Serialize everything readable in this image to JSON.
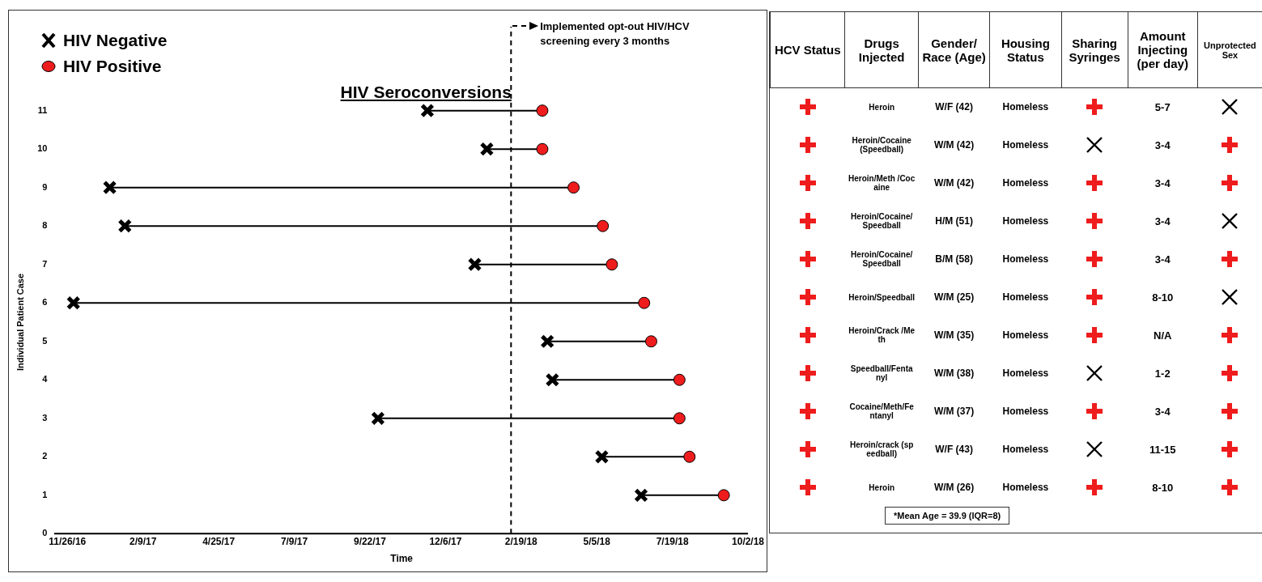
{
  "chart_data": [
    {
      "type": "line",
      "title": "HIV Seroconversions",
      "xlabel": "Time",
      "ylabel": "Individual Patient Case",
      "xlim": [
        "2016-11-14",
        "2018-10-02"
      ],
      "xticks": [
        {
          "value": "2016-11-26",
          "label": "11/26/16"
        },
        {
          "value": "2017-02-09",
          "label": "2/9/17"
        },
        {
          "value": "2017-04-25",
          "label": "4/25/17"
        },
        {
          "value": "2017-07-09",
          "label": "7/9/17"
        },
        {
          "value": "2017-09-22",
          "label": "9/22/17"
        },
        {
          "value": "2017-12-06",
          "label": "12/6/17"
        },
        {
          "value": "2018-02-19",
          "label": "2/19/18"
        },
        {
          "value": "2018-05-05",
          "label": "5/5/18"
        },
        {
          "value": "2018-07-19",
          "label": "7/19/18"
        },
        {
          "value": "2018-10-02",
          "label": "10/2/18"
        }
      ],
      "ylim": [
        0,
        11
      ],
      "yticks": [
        0,
        1,
        2,
        3,
        4,
        5,
        6,
        7,
        8,
        9,
        10,
        11
      ],
      "legend": "top left",
      "ref_lines": [
        {
          "axis": "x",
          "value": "2018-02-09",
          "label": "Implemented opt-out HIV/HCV screening every 3 months",
          "line_style": "dashed",
          "color": "#000000"
        }
      ],
      "series": [
        {
          "type": "line",
          "color": "#000000",
          "marker": "none",
          "x": [
            "2017-11-18",
            "2018-03-12"
          ],
          "values": [
            11,
            11
          ]
        },
        {
          "type": "line",
          "color": "#000000",
          "marker": "none",
          "x": [
            "2018-01-16",
            "2018-03-12"
          ],
          "values": [
            10,
            10
          ]
        },
        {
          "type": "line",
          "color": "#000000",
          "marker": "none",
          "x": [
            "2017-01-07",
            "2018-04-12"
          ],
          "values": [
            9,
            9
          ]
        },
        {
          "type": "line",
          "color": "#000000",
          "marker": "none",
          "x": [
            "2017-01-22",
            "2018-05-11"
          ],
          "values": [
            8,
            8
          ]
        },
        {
          "type": "line",
          "color": "#000000",
          "marker": "none",
          "x": [
            "2018-01-04",
            "2018-05-20"
          ],
          "values": [
            7,
            7
          ]
        },
        {
          "type": "line",
          "color": "#000000",
          "marker": "none",
          "x": [
            "2016-12-02",
            "2018-06-21"
          ],
          "values": [
            6,
            6
          ]
        },
        {
          "type": "line",
          "color": "#000000",
          "marker": "none",
          "x": [
            "2018-03-17",
            "2018-06-28"
          ],
          "values": [
            5,
            5
          ]
        },
        {
          "type": "line",
          "color": "#000000",
          "marker": "none",
          "x": [
            "2018-03-22",
            "2018-07-26"
          ],
          "values": [
            4,
            4
          ]
        },
        {
          "type": "line",
          "color": "#000000",
          "marker": "none",
          "x": [
            "2017-09-30",
            "2018-07-26"
          ],
          "values": [
            3,
            3
          ]
        },
        {
          "type": "line",
          "color": "#000000",
          "marker": "none",
          "x": [
            "2018-05-10",
            "2018-08-05"
          ],
          "values": [
            2,
            2
          ]
        },
        {
          "type": "line",
          "color": "#000000",
          "marker": "none",
          "x": [
            "2018-06-18",
            "2018-09-08"
          ],
          "values": [
            1,
            1
          ]
        },
        {
          "name": "HIV Negative",
          "type": "scatter",
          "color": "#000000",
          "marker": "cross",
          "x": [
            "2017-11-18",
            "2018-01-16",
            "2017-01-07",
            "2017-01-22",
            "2018-01-04",
            "2016-12-02",
            "2018-03-17",
            "2018-03-22",
            "2017-09-30",
            "2018-05-10",
            "2018-06-18"
          ],
          "values": [
            11,
            10,
            9,
            8,
            7,
            6,
            5,
            4,
            3,
            2,
            1
          ]
        },
        {
          "name": "HIV Positive",
          "type": "scatter",
          "color": "#ee1c1c",
          "marker": "circle",
          "x": [
            "2018-03-12",
            "2018-03-12",
            "2018-04-12",
            "2018-05-11",
            "2018-05-20",
            "2018-06-21",
            "2018-06-28",
            "2018-07-26",
            "2018-07-26",
            "2018-08-05",
            "2018-09-08"
          ],
          "values": [
            11,
            10,
            9,
            8,
            7,
            6,
            5,
            4,
            3,
            2,
            1
          ]
        }
      ]
    },
    {
      "type": "other",
      "categories": [
        "HCV Status",
        "Drugs Injected",
        "Gender/ Race (Age)",
        "Housing Status",
        "Sharing Syringes",
        "Amount Injecting (per day)",
        "Unprotected Sex"
      ],
      "cell_labels": [
        [
          null,
          "Heroin",
          "W/F (42)",
          "Homeless",
          null,
          "5-7",
          null
        ],
        [
          null,
          "Heroin/Cocaine (Speedball)",
          "W/M (42)",
          "Homeless",
          null,
          "3-4",
          null
        ],
        [
          null,
          "Heroin/Meth /Cocaine",
          "W/M (42)",
          "Homeless",
          null,
          "3-4",
          null
        ],
        [
          null,
          "Heroin/Cocaine/Speedball",
          "H/M (51)",
          "Homeless",
          null,
          "3-4",
          null
        ],
        [
          null,
          "Heroin/Cocaine/Speedball",
          "B/M (58)",
          "Homeless",
          null,
          "3-4",
          null
        ],
        [
          null,
          "Heroin/Speedball",
          "W/M (25)",
          "Homeless",
          null,
          "8-10",
          null
        ],
        [
          null,
          "Heroin/Crack /Meth",
          "W/M (35)",
          "Homeless",
          null,
          "N/A",
          null
        ],
        [
          null,
          "Speedball/Fentanyl",
          "W/M (38)",
          "Homeless",
          null,
          "1-2",
          null
        ],
        [
          null,
          "Cocaine/Meth/Fentanyl",
          "W/M (37)",
          "Homeless",
          null,
          "3-4",
          null
        ],
        [
          null,
          "Heroin/crack (speedball)",
          "W/F (43)",
          "Homeless",
          null,
          "11-15",
          null
        ],
        [
          null,
          "Heroin",
          "W/M (26)",
          "Homeless",
          null,
          "8-10",
          null
        ]
      ],
      "annotations": [
        "*Mean Age = 39.9 (IQR=8)"
      ]
    }
  ]
}
